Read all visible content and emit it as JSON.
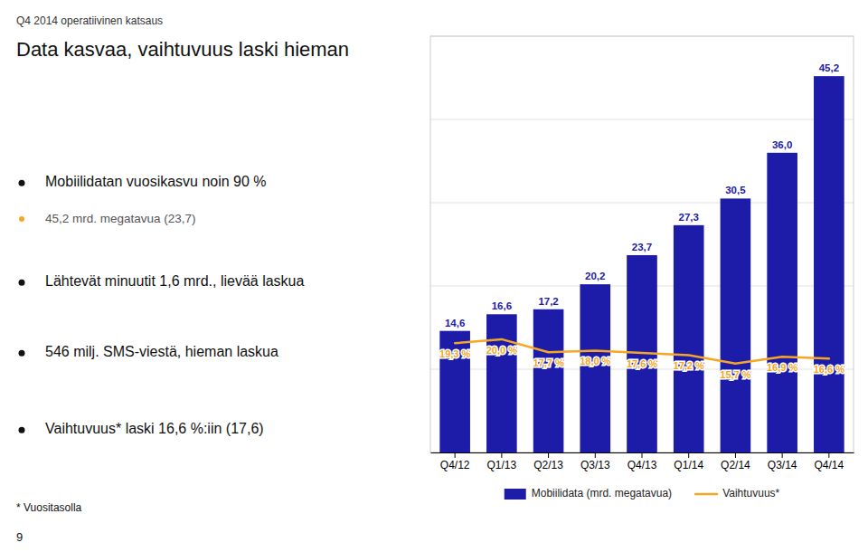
{
  "chart_data": {
    "type": "bar",
    "title": "Data kasvaa, vaihtuvuus laski hieman",
    "subtitle": "Q4 2014 operatiivinen katsaus",
    "annotations": [
      "Mobiilidatan vuosikasvu noin 90 %",
      "45,2 mrd. megatavua (23,7)",
      "Lähtevät minuutit 1,6 mrd., lievää laskua",
      "546 milj. SMS-viestä, hieman laskua",
      "Vaihtuvuus* laski 16,6 %:iin (17,6)",
      "* Vuositasolla",
      "9"
    ],
    "categories": [
      "Q4/12",
      "Q1/13",
      "Q2/13",
      "Q3/13",
      "Q4/13",
      "Q1/14",
      "Q2/14",
      "Q3/14",
      "Q4/14"
    ],
    "series": [
      {
        "name": "Mobiilidata (mrd. megatavua)",
        "type": "bar",
        "color": "#1c1ca8",
        "values": [
          14.6,
          16.6,
          17.2,
          20.2,
          23.7,
          27.3,
          30.5,
          36.0,
          45.2
        ],
        "value_labels": [
          "14,6",
          "16,6",
          "17,2",
          "20,2",
          "23,7",
          "27,3",
          "30,5",
          "36,0",
          "45,2"
        ]
      },
      {
        "name": "Vaihtuvuus*",
        "type": "line",
        "color": "#f5a623",
        "axis": "y2",
        "values": [
          19.3,
          20.0,
          17.7,
          18.0,
          17.6,
          17.2,
          15.7,
          16.9,
          16.6
        ],
        "value_labels": [
          "19,3 %",
          "20,0 %",
          "17,7 %",
          "18,0 %",
          "17,6 %",
          "17,2 %",
          "15,7 %",
          "16,9 %",
          "16,6 %"
        ]
      }
    ],
    "ylim": [
      0,
      50
    ],
    "yticks": [
      0,
      10,
      20,
      30,
      40,
      50
    ],
    "y2lim": [
      0,
      73.52941176470588
    ],
    "grid": true,
    "tick_labels": "x",
    "data_labels": true,
    "legend": "bottom"
  }
}
